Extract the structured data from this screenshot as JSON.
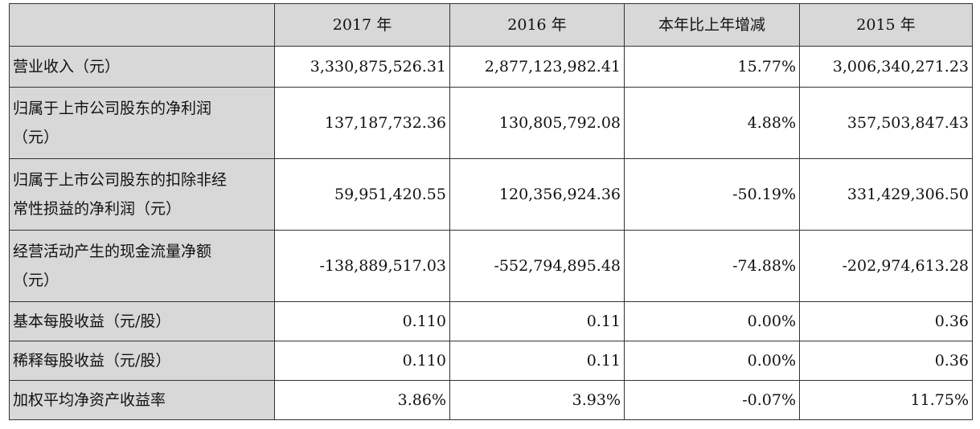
{
  "table": {
    "headers": [
      "",
      "2017 年",
      "2016 年",
      "本年比上年增减",
      "2015 年"
    ],
    "rows": [
      {
        "label_lines": [
          "营业收入（元）"
        ],
        "values": [
          "3,330,875,526.31",
          "2,877,123,982.41",
          "15.77%",
          "3,006,340,271.23"
        ]
      },
      {
        "label_lines": [
          "归属于上市公司股东的净利润",
          "（元）"
        ],
        "values": [
          "137,187,732.36",
          "130,805,792.08",
          "4.88%",
          "357,503,847.43"
        ]
      },
      {
        "label_lines": [
          "归属于上市公司股东的扣除非经",
          "常性损益的净利润（元）"
        ],
        "values": [
          "59,951,420.55",
          "120,356,924.36",
          "-50.19%",
          "331,429,306.50"
        ]
      },
      {
        "label_lines": [
          "经营活动产生的现金流量净额",
          "（元）"
        ],
        "values": [
          "-138,889,517.03",
          "-552,794,895.48",
          "-74.88%",
          "-202,974,613.28"
        ]
      },
      {
        "label_lines": [
          "基本每股收益（元/股）"
        ],
        "values": [
          "0.110",
          "0.11",
          "0.00%",
          "0.36"
        ]
      },
      {
        "label_lines": [
          "稀释每股收益（元/股）"
        ],
        "values": [
          "0.110",
          "0.11",
          "0.00%",
          "0.36"
        ]
      },
      {
        "label_lines": [
          "加权平均净资产收益率"
        ],
        "values": [
          "3.86%",
          "3.93%",
          "-0.07%",
          "11.75%"
        ]
      }
    ]
  }
}
